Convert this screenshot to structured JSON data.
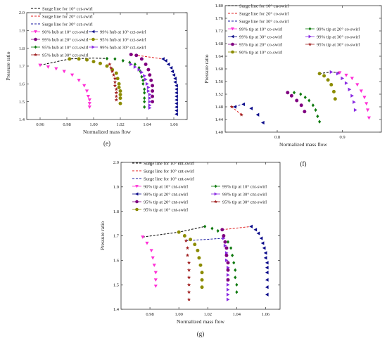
{
  "chart_data": [
    {
      "panel_label": "(e)",
      "type": "scatter",
      "xlabel": "Normalized mass flow",
      "ylabel": "Pressure ratio",
      "xlim": [
        0.95,
        1.07
      ],
      "ylim": [
        1.4,
        2.0
      ],
      "xticks": [
        0.96,
        0.98,
        1.0,
        1.02,
        1.04,
        1.06
      ],
      "xtick_labels": [
        "0.96",
        "0.98",
        "1.00",
        "1.02",
        "1.04",
        "1.06"
      ],
      "yticks": [
        1.4,
        1.5,
        1.6,
        1.7,
        1.8,
        1.9,
        2.0
      ],
      "ytick_labels": [
        "1.4",
        "1.5",
        "1.6",
        "1.7",
        "1.8",
        "1.9",
        "2.0"
      ],
      "legend": {
        "placement": "top-left",
        "columns": 2
      },
      "series": [
        {
          "name": "Surge line for 10° cct-swirl",
          "kind": "line",
          "color": "#000000",
          "x": [
            0.96,
            0.982,
            1.0,
            1.011
          ],
          "y": [
            1.705,
            1.74,
            1.745,
            1.742
          ]
        },
        {
          "name": "Surge line for 20° cct-swirl",
          "kind": "line",
          "color": "#e02020",
          "x": [
            1.028,
            1.052
          ],
          "y": [
            1.765,
            1.74
          ]
        },
        {
          "name": "Surge line for 30° cct-swirl",
          "kind": "line",
          "color": "#1a1aa0",
          "x": [],
          "y": []
        },
        {
          "name": "90% hub at 10° cct-swirl",
          "kind": "marker",
          "marker": "triangle-down",
          "color": "#ff2fd6",
          "x": [
            0.96,
            0.966,
            0.972,
            0.978,
            0.984,
            0.989,
            0.993,
            0.995,
            0.996,
            0.997,
            0.997,
            0.997
          ],
          "y": [
            1.705,
            1.695,
            1.685,
            1.67,
            1.65,
            1.62,
            1.59,
            1.56,
            1.53,
            1.51,
            1.49,
            1.47
          ]
        },
        {
          "name": "99% hub at 10° cct-swirl",
          "kind": "marker",
          "marker": "triangle-left",
          "color": "#0a0a8a",
          "x": [
            1.052,
            1.054,
            1.056,
            1.058,
            1.059,
            1.06,
            1.061,
            1.061,
            1.062,
            1.062,
            1.062,
            1.062,
            1.062,
            1.062,
            1.062,
            1.062,
            1.062
          ],
          "y": [
            1.74,
            1.73,
            1.71,
            1.69,
            1.67,
            1.65,
            1.63,
            1.61,
            1.59,
            1.57,
            1.55,
            1.53,
            1.51,
            1.49,
            1.47,
            1.45,
            1.43
          ]
        },
        {
          "name": "99% hub at 20° cct-swirl",
          "kind": "marker",
          "marker": "circle",
          "color": "#800080",
          "x": [
            1.028,
            1.032,
            1.036,
            1.039,
            1.041,
            1.042,
            1.043,
            1.044,
            1.044,
            1.044,
            1.044
          ],
          "y": [
            1.765,
            1.76,
            1.74,
            1.71,
            1.68,
            1.65,
            1.62,
            1.59,
            1.56,
            1.53,
            1.5
          ]
        },
        {
          "name": "95% hub at 10° cct-swirl",
          "kind": "marker",
          "marker": "circle",
          "color": "#8b8b00",
          "x": [
            0.982,
            0.989,
            0.995,
            1.0,
            1.005,
            1.01,
            1.014,
            1.017,
            1.018,
            1.019,
            1.019,
            1.02,
            1.02,
            1.02,
            1.02
          ],
          "y": [
            1.74,
            1.74,
            1.735,
            1.725,
            1.715,
            1.7,
            1.68,
            1.66,
            1.63,
            1.6,
            1.58,
            1.56,
            1.54,
            1.52,
            1.49
          ]
        },
        {
          "name": "95% hub at 10° cct-swirl",
          "kind": "marker",
          "marker": "diamond",
          "color": "#0f7a0f",
          "x": [
            1.01,
            1.016,
            1.022,
            1.027,
            1.031,
            1.034,
            1.035,
            1.036,
            1.037,
            1.037,
            1.038,
            1.038,
            1.038,
            1.038,
            1.038
          ],
          "y": [
            1.742,
            1.74,
            1.73,
            1.72,
            1.71,
            1.69,
            1.67,
            1.64,
            1.62,
            1.6,
            1.57,
            1.55,
            1.52,
            1.5,
            1.47
          ]
        },
        {
          "name": "99% hub at 30° cct-swirl",
          "kind": "marker",
          "marker": "triangle-right",
          "color": "#8a2be2",
          "x": [
            1.028,
            1.031,
            1.034,
            1.036,
            1.038,
            1.039,
            1.04,
            1.041,
            1.041,
            1.042,
            1.042,
            1.042,
            1.042,
            1.042
          ],
          "y": [
            1.71,
            1.695,
            1.68,
            1.665,
            1.645,
            1.625,
            1.6,
            1.58,
            1.56,
            1.54,
            1.52,
            1.5,
            1.48,
            1.465
          ]
        },
        {
          "name": "95% hub at 30° cct-swirl",
          "kind": "marker",
          "marker": "star",
          "color": "#a02020",
          "x": [
            1.012,
            1.013,
            1.014,
            1.015,
            1.016,
            1.016,
            1.016,
            1.017,
            1.017,
            1.017,
            1.017
          ],
          "y": [
            1.71,
            1.69,
            1.67,
            1.65,
            1.63,
            1.61,
            1.59,
            1.57,
            1.55,
            1.53,
            1.51
          ]
        }
      ]
    },
    {
      "panel_label": "(f)",
      "type": "scatter",
      "xlabel": "Normalized mass flow",
      "ylabel": "Pressure ratio",
      "xlim": [
        0.72,
        0.96
      ],
      "ylim": [
        1.4,
        1.8
      ],
      "xticks": [
        0.8,
        0.9
      ],
      "xtick_labels": [
        "0.8",
        "0.9"
      ],
      "yticks": [
        1.4,
        1.44,
        1.48,
        1.52,
        1.56,
        1.6,
        1.64,
        1.68,
        1.72,
        1.76,
        1.8
      ],
      "ytick_labels": [
        "1.40",
        "1.44",
        "1.48",
        "1.52",
        "1.56",
        "1.60",
        "1.64",
        "1.68",
        "1.72",
        "1.76",
        "1.80"
      ],
      "legend": {
        "placement": "top-left",
        "columns": 2
      },
      "series": [
        {
          "name": "Surge line for 10° co-swirl",
          "kind": "line",
          "color": "#000000",
          "x": [
            0.865,
            0.882,
            0.896
          ],
          "y": [
            1.585,
            1.59,
            1.588
          ]
        },
        {
          "name": "Surge line for 20° co-swirl",
          "kind": "line",
          "color": "#e02020",
          "x": [
            0.73,
            0.745
          ],
          "y": [
            1.48,
            1.455
          ]
        },
        {
          "name": "Surge line for 30° co-swirl",
          "kind": "line",
          "color": "#1a1aa0",
          "x": [
            0.735,
            0.745
          ],
          "y": [
            1.48,
            1.488
          ]
        },
        {
          "name": "99% tip at 10° co-swirl",
          "kind": "marker",
          "marker": "triangle-down",
          "color": "#ff2fd6",
          "x": [
            0.896,
            0.906,
            0.915,
            0.923,
            0.929,
            0.934,
            0.937,
            0.939,
            0.941
          ],
          "y": [
            1.588,
            1.58,
            1.57,
            1.55,
            1.53,
            1.51,
            1.49,
            1.47,
            1.445
          ]
        },
        {
          "name": "99% tip at 20° co-swirl",
          "kind": "marker",
          "marker": "diamond",
          "color": "#0f7a0f",
          "x": [
            0.826,
            0.836,
            0.843,
            0.849,
            0.855,
            0.859,
            0.862,
            0.865
          ],
          "y": [
            1.525,
            1.52,
            1.51,
            1.5,
            1.485,
            1.47,
            1.45,
            1.433
          ]
        },
        {
          "name": "99% tip at 30° co-swirl",
          "kind": "marker",
          "marker": "triangle-left",
          "color": "#0a0a8a",
          "x": [
            0.735,
            0.748,
            0.76,
            0.77,
            0.778
          ],
          "y": [
            1.48,
            1.488,
            1.475,
            1.455,
            1.43
          ]
        },
        {
          "name": "99% tip at 30° co-swirl",
          "kind": "marker",
          "marker": "triangle-right",
          "color": "#8a2be2",
          "x": [
            0.883,
            0.893,
            0.9,
            0.906,
            0.911,
            0.915,
            0.918,
            0.92
          ],
          "y": [
            1.59,
            1.585,
            1.57,
            1.555,
            1.535,
            1.515,
            1.495,
            1.47
          ]
        },
        {
          "name": "95% tip at 20° co-swirl",
          "kind": "marker",
          "marker": "circle",
          "color": "#800080",
          "x": [
            0.816,
            0.822,
            0.83,
            0.837,
            0.842
          ],
          "y": [
            1.525,
            1.515,
            1.5,
            1.485,
            1.465
          ]
        },
        {
          "name": "95% tip at 30° co-swirl",
          "kind": "marker",
          "marker": "star",
          "color": "#a02020",
          "x": [
            0.73,
            0.745
          ],
          "y": [
            1.48,
            1.455
          ]
        },
        {
          "name": "90% tip at 10° co-swirl",
          "kind": "marker",
          "marker": "circle",
          "color": "#8b8b00",
          "x": [
            0.865,
            0.872,
            0.878,
            0.883,
            0.887,
            0.889
          ],
          "y": [
            1.585,
            1.578,
            1.565,
            1.55,
            1.528,
            1.505
          ]
        }
      ]
    },
    {
      "panel_label": "(g)",
      "type": "scatter",
      "xlabel": "Normalized mass flow",
      "ylabel": "Pressure ratio",
      "xlim": [
        0.96,
        1.07
      ],
      "ylim": [
        1.4,
        2.0
      ],
      "xticks": [
        0.98,
        1.0,
        1.02,
        1.04,
        1.06
      ],
      "xtick_labels": [
        "0.98",
        "1.00",
        "1.02",
        "1.04",
        "1.06"
      ],
      "yticks": [
        1.4,
        1.5,
        1.6,
        1.7,
        1.8,
        1.9,
        2.0
      ],
      "ytick_labels": [
        "1.4",
        "1.5",
        "1.6",
        "1.7",
        "1.8",
        "1.9",
        "2.0"
      ],
      "legend": {
        "placement": "top-left",
        "columns": 2
      },
      "series": [
        {
          "name": "Surge line for 10° cnt-swirl",
          "kind": "line",
          "color": "#000000",
          "x": [
            0.975,
            1.0,
            1.018
          ],
          "y": [
            1.695,
            1.715,
            1.738
          ]
        },
        {
          "name": "Surge line for 10° cnt-swirl",
          "kind": "line",
          "color": "#e02020",
          "x": [
            1.03,
            1.05
          ],
          "y": [
            1.725,
            1.738
          ]
        },
        {
          "name": "Surge line for 10° cnt-swirl",
          "kind": "line",
          "color": "#1a1aa0",
          "x": [
            1.005,
            1.031
          ],
          "y": [
            1.68,
            1.69
          ]
        },
        {
          "name": "90% tip at 10° cnt-swirl",
          "kind": "marker",
          "marker": "triangle-down",
          "color": "#ff2fd6",
          "x": [
            0.975,
            0.978,
            0.981,
            0.982,
            0.983,
            0.984,
            0.984,
            0.984
          ],
          "y": [
            1.695,
            1.67,
            1.64,
            1.61,
            1.58,
            1.55,
            1.52,
            1.495
          ]
        },
        {
          "name": "99% tip at 10° cnt-swirl",
          "kind": "marker",
          "marker": "diamond",
          "color": "#0f7a0f",
          "x": [
            1.018,
            1.023,
            1.027,
            1.031,
            1.034,
            1.036,
            1.037,
            1.038,
            1.039,
            1.039,
            1.04,
            1.04
          ],
          "y": [
            1.738,
            1.73,
            1.72,
            1.7,
            1.675,
            1.65,
            1.62,
            1.59,
            1.56,
            1.53,
            1.5,
            1.47
          ]
        },
        {
          "name": "99% tip at 20° cnt-swirl",
          "kind": "marker",
          "marker": "triangle-left",
          "color": "#0a0a8a",
          "x": [
            1.05,
            1.053,
            1.055,
            1.057,
            1.058,
            1.059,
            1.06,
            1.06,
            1.061,
            1.061,
            1.061,
            1.061,
            1.061,
            1.061
          ],
          "y": [
            1.738,
            1.725,
            1.71,
            1.69,
            1.67,
            1.65,
            1.63,
            1.61,
            1.59,
            1.57,
            1.55,
            1.52,
            1.49,
            1.46
          ]
        },
        {
          "name": "99% tip at 30° cnt-swirl",
          "kind": "marker",
          "marker": "triangle-right",
          "color": "#8a2be2",
          "x": [
            1.031,
            1.032,
            1.033,
            1.033,
            1.034,
            1.034,
            1.034,
            1.034,
            1.034,
            1.034,
            1.034
          ],
          "y": [
            1.69,
            1.66,
            1.63,
            1.6,
            1.57,
            1.54,
            1.52,
            1.5,
            1.48,
            1.46,
            1.44
          ]
        },
        {
          "name": "95% tip at 20° cnt-swirl",
          "kind": "marker",
          "marker": "circle",
          "color": "#800080",
          "x": [
            1.03,
            1.031,
            1.032,
            1.033,
            1.033,
            1.034,
            1.034,
            1.034
          ],
          "y": [
            1.725,
            1.7,
            1.675,
            1.65,
            1.62,
            1.59,
            1.56,
            1.52
          ]
        },
        {
          "name": "95% tip at 30° cnt-swirl",
          "kind": "marker",
          "marker": "star",
          "color": "#a02020",
          "x": [
            1.005,
            1.006,
            1.006,
            1.007,
            1.007,
            1.007,
            1.007,
            1.007,
            1.007
          ],
          "y": [
            1.68,
            1.65,
            1.62,
            1.59,
            1.56,
            1.53,
            1.5,
            1.47,
            1.44
          ]
        },
        {
          "name": "95% tip at 10° cnt-swirl",
          "kind": "marker",
          "marker": "circle",
          "color": "#8b8b00",
          "x": [
            1.0,
            1.004,
            1.008,
            1.011,
            1.013,
            1.014,
            1.015,
            1.016,
            1.016,
            1.016
          ],
          "y": [
            1.715,
            1.7,
            1.685,
            1.665,
            1.64,
            1.61,
            1.58,
            1.55,
            1.52,
            1.49
          ]
        }
      ]
    }
  ]
}
